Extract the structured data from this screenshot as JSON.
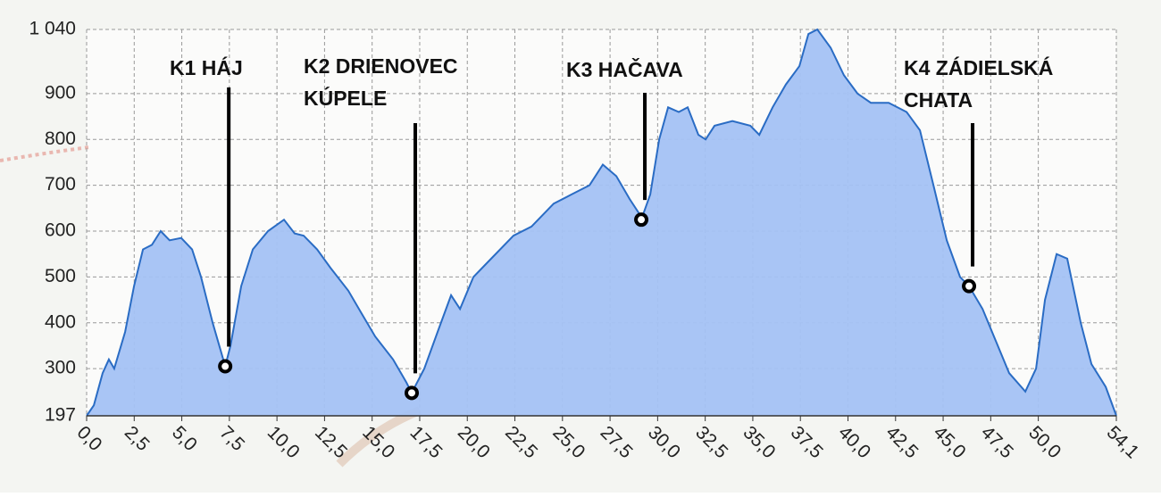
{
  "chart_data": {
    "type": "area",
    "x": [
      0,
      0.38,
      0.84,
      1.17,
      1.45,
      2.02,
      2.49,
      2.96,
      3.43,
      3.89,
      4.36,
      4.97,
      5.54,
      6.01,
      6.62,
      7.28,
      7.56,
      8.12,
      8.73,
      9.53,
      10.37,
      10.93,
      11.4,
      12.11,
      12.81,
      13.75,
      14.45,
      15.16,
      16.1,
      16.8,
      17.08,
      17.74,
      18.44,
      19.15,
      19.62,
      20.32,
      21.02,
      22.43,
      23.37,
      24.54,
      25.48,
      26.42,
      27.12,
      27.83,
      28.53,
      29.0,
      29.14,
      29.61,
      30.08,
      30.55,
      31.11,
      31.58,
      32.14,
      32.52,
      32.99,
      33.93,
      34.87,
      35.34,
      36.04,
      36.74,
      37.45,
      37.92,
      38.39,
      39.09,
      39.79,
      40.5,
      41.2,
      42.14,
      43.08,
      43.78,
      44.49,
      45.19,
      45.89,
      46.36,
      47.07,
      47.77,
      48.47,
      49.32,
      49.88,
      50.35,
      50.96,
      51.52,
      52.23,
      52.79,
      53.54,
      54.1
    ],
    "series": [
      {
        "color": "#a4c2f4",
        "line_color": "#2a6cc4",
        "values": [
          197,
          220,
          290,
          320,
          300,
          380,
          480,
          560,
          570,
          600,
          580,
          585,
          560,
          500,
          400,
          305,
          350,
          480,
          560,
          600,
          625,
          595,
          590,
          560,
          520,
          470,
          420,
          370,
          320,
          270,
          247,
          300,
          380,
          460,
          430,
          500,
          530,
          590,
          610,
          660,
          680,
          700,
          745,
          720,
          670,
          640,
          625,
          680,
          800,
          870,
          860,
          870,
          810,
          800,
          830,
          840,
          830,
          810,
          870,
          920,
          960,
          1030,
          1040,
          1000,
          940,
          900,
          880,
          880,
          860,
          820,
          700,
          580,
          500,
          480,
          430,
          360,
          290,
          250,
          300,
          450,
          550,
          540,
          400,
          310,
          260,
          197
        ]
      }
    ],
    "xlim": [
      0,
      54.1
    ],
    "ylim": [
      197,
      1040
    ],
    "xticks": [
      {
        "value": 0,
        "label": "0,0"
      },
      {
        "value": 2.5,
        "label": "2,5"
      },
      {
        "value": 5,
        "label": "5,0"
      },
      {
        "value": 7.5,
        "label": "7,5"
      },
      {
        "value": 10,
        "label": "10,0"
      },
      {
        "value": 12.5,
        "label": "12,5"
      },
      {
        "value": 15,
        "label": "15,0"
      },
      {
        "value": 17.5,
        "label": "17,5"
      },
      {
        "value": 20,
        "label": "20,0"
      },
      {
        "value": 22.5,
        "label": "22,5"
      },
      {
        "value": 25,
        "label": "25,0"
      },
      {
        "value": 27.5,
        "label": "27,5"
      },
      {
        "value": 30,
        "label": "30,0"
      },
      {
        "value": 32.5,
        "label": "32,5"
      },
      {
        "value": 35,
        "label": "35,0"
      },
      {
        "value": 37.5,
        "label": "37,5"
      },
      {
        "value": 40,
        "label": "40,0"
      },
      {
        "value": 42.5,
        "label": "42,5"
      },
      {
        "value": 45,
        "label": "45,0"
      },
      {
        "value": 47.5,
        "label": "47,5"
      },
      {
        "value": 50,
        "label": "50,0"
      },
      {
        "value": 54.1,
        "label": "54,1"
      }
    ],
    "yticks": [
      197,
      300,
      400,
      500,
      600,
      700,
      800,
      900,
      {
        "value": 1040,
        "label": "1 040"
      }
    ],
    "grid": true,
    "annotations": [
      {
        "label_lines": [
          "K1 HÁJ"
        ],
        "x": 7.28,
        "y": 305
      },
      {
        "label_lines": [
          "K2 DRIENOVEC",
          "KÚPELE"
        ],
        "x": 17.08,
        "y": 247
      },
      {
        "label_lines": [
          "K3 HAČAVA"
        ],
        "x": 29.14,
        "y": 625
      },
      {
        "label_lines": [
          "K4 ZÁDIELSKÁ",
          "CHATA"
        ],
        "x": 46.36,
        "y": 480
      }
    ]
  }
}
